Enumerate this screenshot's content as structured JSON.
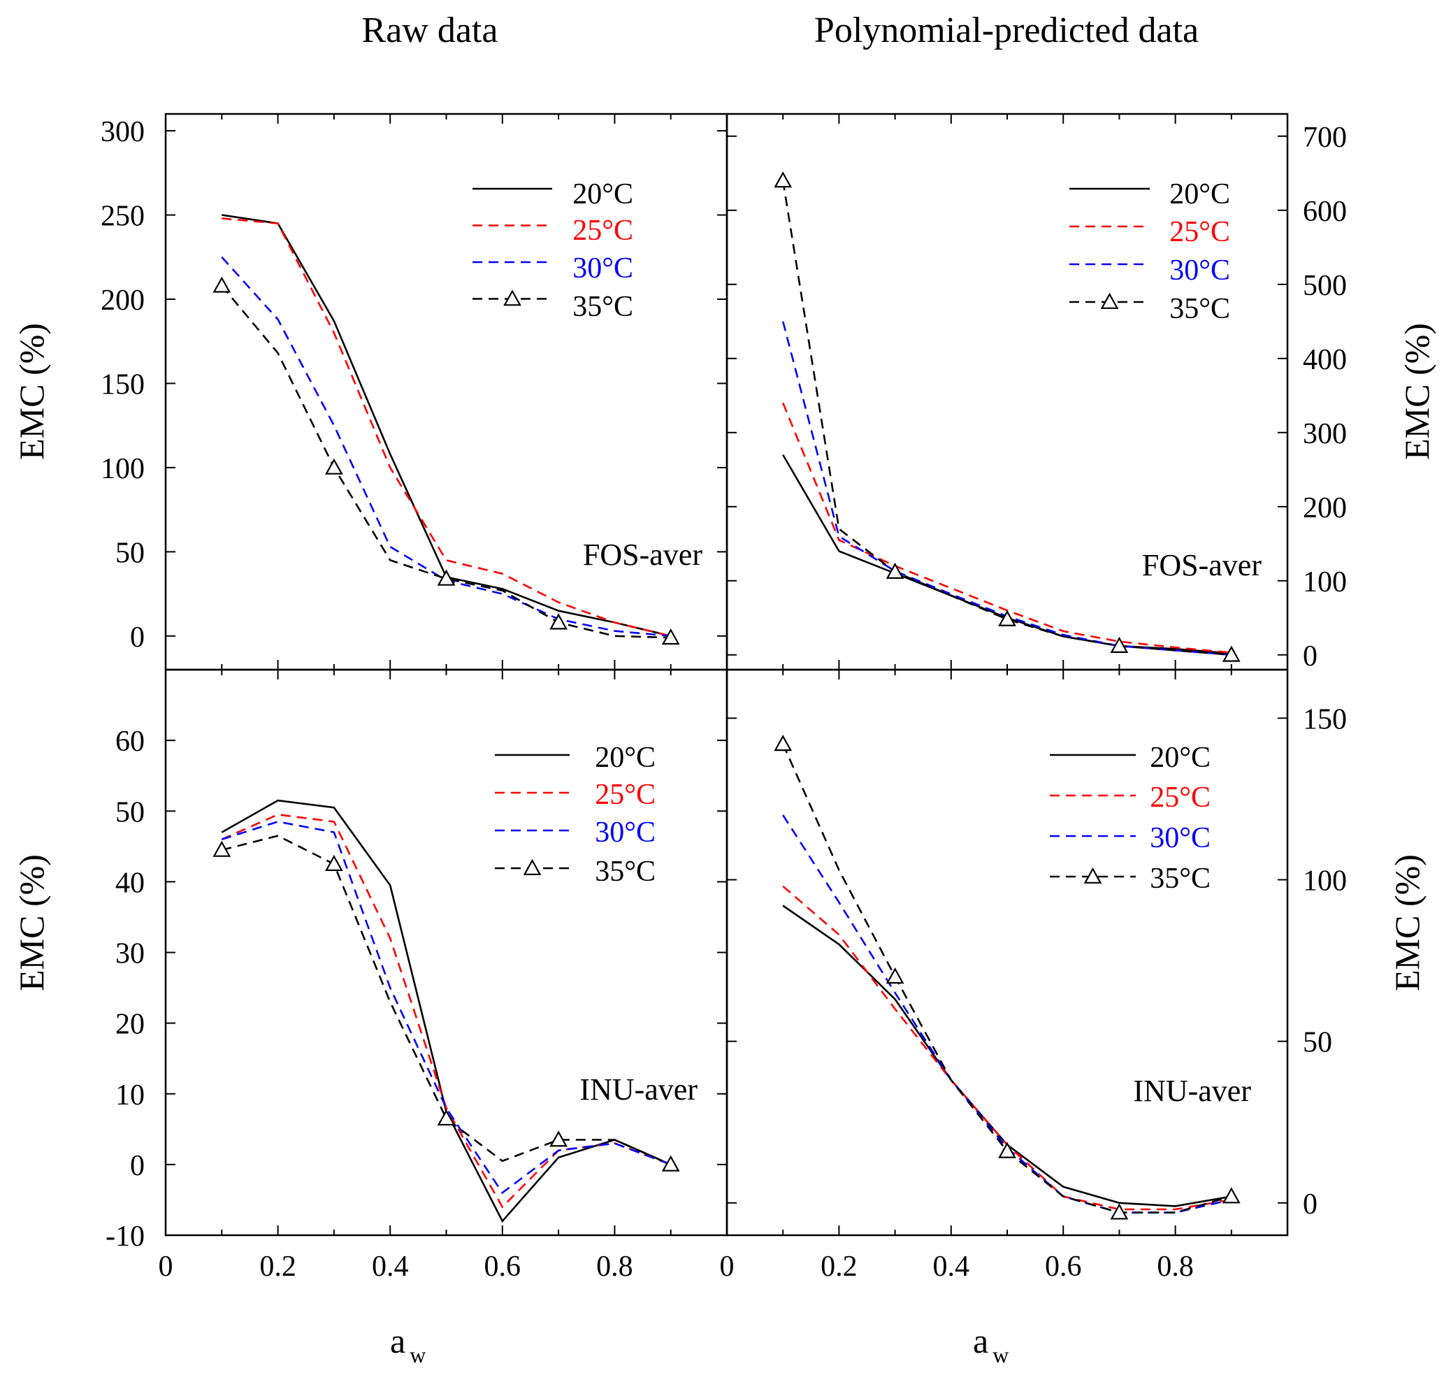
{
  "column_titles": [
    "Raw data",
    "Polynomial-predicted data"
  ],
  "y_axis_label": "EMC (%)",
  "x_axis_label_main": "a",
  "x_axis_label_sub": "w",
  "series_styles": [
    {
      "name": "20°C",
      "color": "#000000",
      "dash": "solid",
      "marker": "none"
    },
    {
      "name": "25°C",
      "color": "#ff0000",
      "dash": "dashed",
      "marker": "none"
    },
    {
      "name": "30°C",
      "color": "#0000ff",
      "dash": "dashed",
      "marker": "none"
    },
    {
      "name": "35°C",
      "color": "#000000",
      "dash": "dashed",
      "marker": "triangle"
    }
  ],
  "chart_data": [
    {
      "type": "line",
      "panel": "top-left",
      "title": "Raw data",
      "annotation": "FOS-aver",
      "xlabel": "a_w",
      "ylabel": "EMC (%)",
      "xlim": [
        0,
        1.0
      ],
      "ylim": [
        -20,
        310
      ],
      "xticks": [
        0,
        0.2,
        0.4,
        0.6,
        0.8
      ],
      "yticks": [
        0,
        50,
        100,
        150,
        200,
        250,
        300
      ],
      "x": [
        0.1,
        0.2,
        0.3,
        0.4,
        0.5,
        0.6,
        0.7,
        0.8,
        0.9
      ],
      "series": [
        {
          "name": "20°C",
          "values": [
            250,
            245,
            187,
            108,
            35,
            28,
            15,
            8,
            0
          ]
        },
        {
          "name": "25°C",
          "values": [
            248,
            245,
            180,
            100,
            45,
            37,
            20,
            8,
            0
          ]
        },
        {
          "name": "30°C",
          "values": [
            225,
            188,
            125,
            53,
            33,
            25,
            10,
            3,
            0
          ]
        },
        {
          "name": "35°C",
          "values": [
            208,
            168,
            100,
            45,
            34,
            27,
            8,
            0,
            -1
          ]
        }
      ],
      "legend_position": "top-right"
    },
    {
      "type": "line",
      "panel": "top-right",
      "title": "Polynomial-predicted data",
      "annotation": "FOS-aver",
      "xlabel": "a_w",
      "ylabel": "EMC (%)",
      "xlim": [
        0,
        1.0
      ],
      "ylim": [
        -20,
        730
      ],
      "xticks": [
        0,
        0.2,
        0.4,
        0.6,
        0.8
      ],
      "yticks": [
        0,
        100,
        200,
        300,
        400,
        500,
        600,
        700
      ],
      "x": [
        0.1,
        0.2,
        0.3,
        0.4,
        0.5,
        0.6,
        0.7,
        0.8,
        0.9
      ],
      "series": [
        {
          "name": "20°C",
          "values": [
            270,
            140,
            110,
            80,
            50,
            25,
            12,
            8,
            2
          ]
        },
        {
          "name": "25°C",
          "values": [
            340,
            155,
            120,
            90,
            60,
            32,
            18,
            10,
            3
          ]
        },
        {
          "name": "30°C",
          "values": [
            450,
            160,
            113,
            82,
            52,
            27,
            12,
            6,
            0
          ]
        },
        {
          "name": "35°C",
          "values": [
            640,
            170,
            112,
            80,
            48,
            25,
            12,
            6,
            0
          ]
        }
      ],
      "legend_position": "top-right"
    },
    {
      "type": "line",
      "panel": "bottom-left",
      "annotation": "INU-aver",
      "xlabel": "a_w",
      "ylabel": "EMC (%)",
      "xlim": [
        0,
        1.0
      ],
      "ylim": [
        -10,
        70
      ],
      "xticks": [
        0,
        0.2,
        0.4,
        0.6,
        0.8
      ],
      "yticks": [
        -10,
        0,
        10,
        20,
        30,
        40,
        50,
        60
      ],
      "x": [
        0.1,
        0.2,
        0.3,
        0.4,
        0.5,
        0.6,
        0.7,
        0.8,
        0.9
      ],
      "series": [
        {
          "name": "20°C",
          "values": [
            47,
            51.5,
            50.5,
            39.5,
            7.5,
            -8,
            1,
            3.5,
            0
          ]
        },
        {
          "name": "25°C",
          "values": [
            46,
            49.5,
            48.5,
            32,
            8,
            -6,
            2,
            3,
            0
          ]
        },
        {
          "name": "30°C",
          "values": [
            46,
            48.5,
            47,
            25,
            8,
            -4,
            2,
            3,
            0
          ]
        },
        {
          "name": "35°C",
          "values": [
            44.5,
            46.5,
            42.5,
            23,
            6.5,
            0.5,
            3.5,
            3.5,
            0
          ]
        }
      ],
      "legend_position": "top-right"
    },
    {
      "type": "line",
      "panel": "bottom-right",
      "annotation": "INU-aver",
      "xlabel": "a_w",
      "ylabel": "EMC (%)",
      "xlim": [
        0,
        1.0
      ],
      "ylim": [
        -10,
        165
      ],
      "xticks": [
        0,
        0.2,
        0.4,
        0.6,
        0.8
      ],
      "yticks": [
        0,
        50,
        100,
        150
      ],
      "x": [
        0.1,
        0.2,
        0.3,
        0.4,
        0.5,
        0.6,
        0.7,
        0.8,
        0.9
      ],
      "series": [
        {
          "name": "20°C",
          "values": [
            92,
            80,
            63,
            38,
            18,
            5,
            0,
            -1,
            2
          ]
        },
        {
          "name": "25°C",
          "values": [
            98,
            83,
            60,
            38,
            18,
            2,
            -2,
            -2,
            1
          ]
        },
        {
          "name": "30°C",
          "values": [
            120,
            93,
            65,
            38,
            17,
            2,
            -3,
            -3,
            1
          ]
        },
        {
          "name": "35°C",
          "values": [
            142,
            103,
            70,
            38,
            16,
            2,
            -3,
            -3,
            2
          ]
        }
      ],
      "legend_position": "top-right"
    }
  ]
}
